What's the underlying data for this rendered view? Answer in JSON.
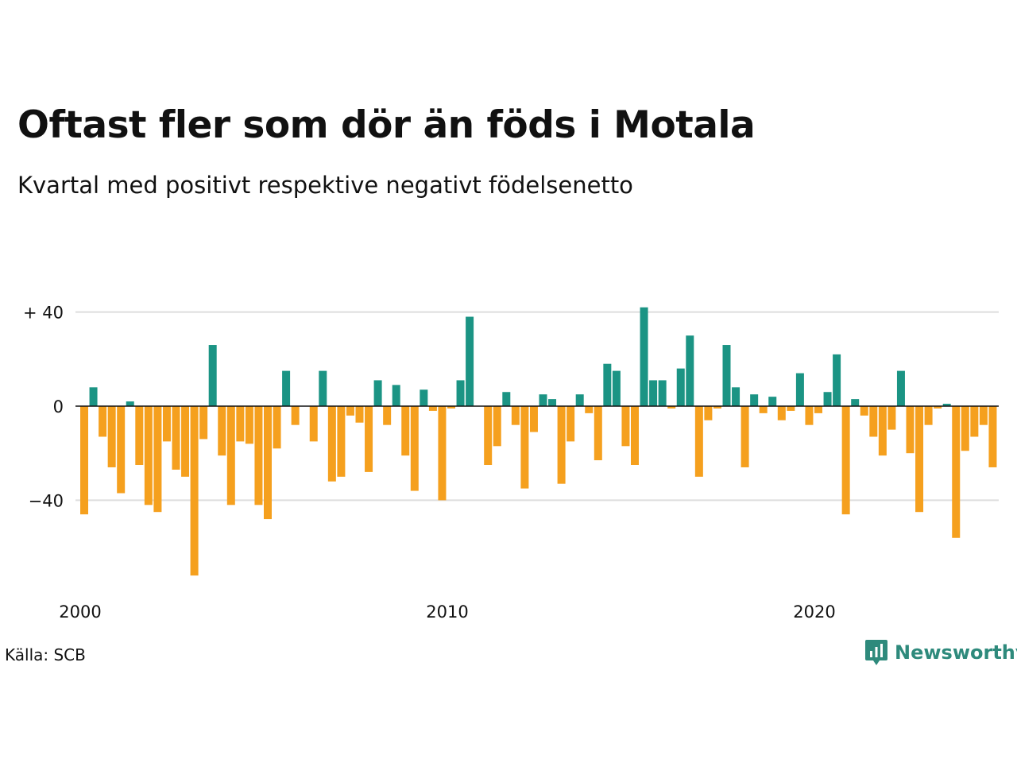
{
  "title": "Oftast fler som dör än föds i Motala",
  "subtitle": "Kvartal med positivt respektive negativt födelsenetto",
  "source": "Källa: SCB",
  "brand": {
    "name": "Newsworthy",
    "icon": "newsworthy-logo-icon"
  },
  "colors": {
    "positive": "#1b9484",
    "negative": "#f5a01e",
    "grid": "#dddddd",
    "zero": "#111111"
  },
  "chart_data": {
    "type": "bar",
    "xlabel": "",
    "ylabel": "",
    "ylim": [
      -72,
      42
    ],
    "x_start_year": 2000,
    "periods_per_year": 4,
    "yticks": [
      {
        "value": 40,
        "label": "+ 40"
      },
      {
        "value": 0,
        "label": "0"
      },
      {
        "value": -40,
        "label": "−40"
      }
    ],
    "xticks": [
      {
        "value": 2000,
        "label": "2000"
      },
      {
        "value": 2010,
        "label": "2010"
      },
      {
        "value": 2020,
        "label": "2020"
      }
    ],
    "grid": true,
    "values": [
      -46,
      8,
      -13,
      -26,
      -37,
      2,
      -25,
      -42,
      -45,
      -15,
      -27,
      -30,
      -72,
      -14,
      26,
      -21,
      -42,
      -15,
      -16,
      -42,
      -48,
      -18,
      15,
      -8,
      0,
      -15,
      15,
      -32,
      -30,
      -4,
      -7,
      -28,
      11,
      -8,
      9,
      -21,
      -36,
      7,
      -2,
      -40,
      -1,
      11,
      38,
      0,
      -25,
      -17,
      6,
      -8,
      -35,
      -11,
      5,
      3,
      -33,
      -15,
      5,
      -3,
      -23,
      18,
      15,
      -17,
      -25,
      42,
      11,
      11,
      -1,
      16,
      30,
      -30,
      -6,
      -1,
      26,
      8,
      -26,
      5,
      -3,
      4,
      -6,
      -2,
      14,
      -8,
      -3,
      6,
      22,
      -46,
      3,
      -4,
      -13,
      -21,
      -10,
      15,
      -20,
      -45,
      -8,
      -1,
      1,
      -56,
      -19,
      -13,
      -8,
      -26
    ]
  }
}
